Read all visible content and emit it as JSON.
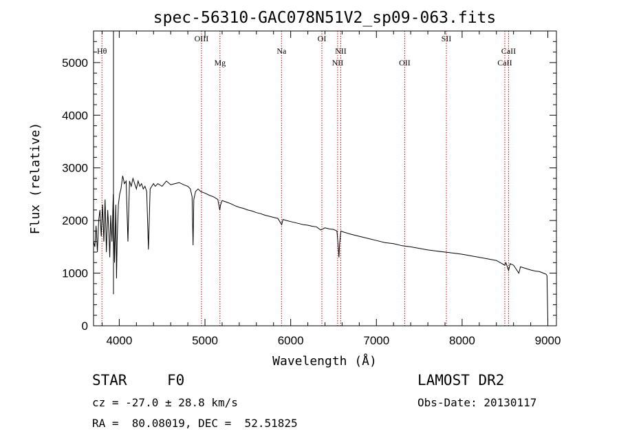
{
  "chart_data": {
    "type": "line",
    "title": "spec-56310-GAC078N51V2_sp09-063.fits",
    "xlabel": "Wavelength (Å)",
    "ylabel": "Flux (relative)",
    "xlim": [
      3700,
      9100
    ],
    "ylim": [
      0,
      5600
    ],
    "xticks": [
      4000,
      5000,
      6000,
      7000,
      8000,
      9000
    ],
    "yticks": [
      0,
      1000,
      2000,
      3000,
      4000,
      5000
    ],
    "grid": false,
    "line_color": "#000000",
    "marker_color": "#cc0000",
    "series": [
      {
        "x": [
          3700,
          3715,
          3730,
          3745,
          3760,
          3775,
          3790,
          3805,
          3820,
          3835,
          3850,
          3865,
          3880,
          3889,
          3900,
          3915,
          3930,
          3945,
          3960,
          3968,
          3975,
          3990,
          4005,
          4020,
          4040,
          4060,
          4080,
          4101,
          4120,
          4140,
          4160,
          4180,
          4200,
          4220,
          4240,
          4260,
          4280,
          4300,
          4320,
          4340,
          4360,
          4380,
          4400,
          4420,
          4450,
          4500,
          4550,
          4600,
          4650,
          4700,
          4750,
          4800,
          4830,
          4850,
          4861,
          4870,
          4890,
          4920,
          4950,
          5000,
          5050,
          5100,
          5150,
          5172,
          5183,
          5200,
          5250,
          5300,
          5350,
          5400,
          5450,
          5500,
          5550,
          5600,
          5650,
          5700,
          5750,
          5800,
          5850,
          5895,
          5910,
          5950,
          6000,
          6050,
          6100,
          6150,
          6200,
          6250,
          6300,
          6350,
          6400,
          6450,
          6500,
          6540,
          6555,
          6563,
          6570,
          6585,
          6620,
          6700,
          6800,
          6900,
          7000,
          7100,
          7200,
          7300,
          7400,
          7500,
          7600,
          7700,
          7800,
          7900,
          8000,
          8100,
          8200,
          8300,
          8400,
          8498,
          8510,
          8542,
          8560,
          8600,
          8662,
          8680,
          8720,
          8760,
          8800,
          8850,
          8900,
          8950,
          8980,
          8990,
          9000
        ],
        "y": [
          1600,
          1500,
          1900,
          1400,
          2000,
          2200,
          1700,
          2300,
          1600,
          2400,
          1400,
          2200,
          1750,
          1300,
          2100,
          1600,
          2500,
          1200,
          2300,
          900,
          1600,
          2300,
          2500,
          2600,
          2850,
          2700,
          2750,
          1600,
          2750,
          2650,
          2800,
          2700,
          2600,
          2750,
          2650,
          2700,
          2600,
          2650,
          2550,
          1450,
          2600,
          2650,
          2700,
          2650,
          2700,
          2650,
          2750,
          2680,
          2700,
          2720,
          2680,
          2650,
          2600,
          2450,
          1530,
          2400,
          2550,
          2600,
          2550,
          2520,
          2480,
          2450,
          2400,
          2200,
          2300,
          2380,
          2350,
          2320,
          2280,
          2250,
          2230,
          2200,
          2180,
          2150,
          2130,
          2100,
          2080,
          2060,
          2040,
          1920,
          2020,
          2000,
          1980,
          1960,
          1940,
          1920,
          1910,
          1890,
          1880,
          1820,
          1860,
          1840,
          1830,
          1800,
          1500,
          1300,
          1550,
          1800,
          1780,
          1740,
          1700,
          1660,
          1620,
          1580,
          1560,
          1520,
          1500,
          1470,
          1440,
          1420,
          1400,
          1380,
          1360,
          1330,
          1300,
          1270,
          1240,
          1150,
          1200,
          1050,
          1180,
          1150,
          1000,
          1120,
          1100,
          1080,
          1060,
          1040,
          1030,
          1000,
          980,
          950,
          100
        ]
      }
    ],
    "spike": {
      "x": 3933,
      "y": 5600
    },
    "lines_markers": [
      {
        "label": "Hθ",
        "x": 3798,
        "row": "upper"
      },
      {
        "label": "OIII",
        "x": 4959,
        "row": "top"
      },
      {
        "label": "Mg",
        "x": 5175,
        "row": "mid"
      },
      {
        "label": "Na",
        "x": 5893,
        "row": "upper"
      },
      {
        "label": "OI",
        "x": 6364,
        "row": "top"
      },
      {
        "label": "NII",
        "x": 6548,
        "row": "mid"
      },
      {
        "label": "NII",
        "x": 6584,
        "row": "upper"
      },
      {
        "label": "OII",
        "x": 7330,
        "row": "mid"
      },
      {
        "label": "SII",
        "x": 7816,
        "row": "top"
      },
      {
        "label": "CaII",
        "x": 8498,
        "row": "mid"
      },
      {
        "label": "CaII",
        "x": 8542,
        "row": "upper"
      }
    ]
  },
  "info": {
    "class_label": "STAR",
    "subclass": "F0",
    "survey": "LAMOST DR2",
    "cz": "cz = -27.0 ± 28.8 km/s",
    "obs_date": "Obs-Date: 20130117",
    "radec": "RA =  80.08019, DEC =  52.51825"
  }
}
